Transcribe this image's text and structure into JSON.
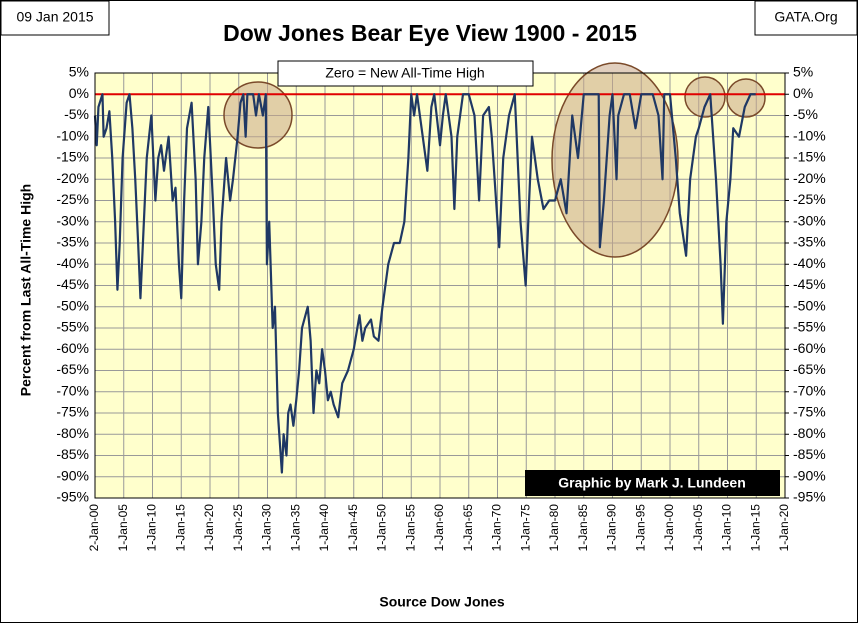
{
  "chart_data": {
    "type": "line",
    "title": "Dow Jones Bear Eye View 1900 - 2015",
    "date_label": "09 Jan 2015",
    "source_site": "GATA.Org",
    "annotation": "Zero = New All-Time High",
    "credit": "Graphic by Mark J. Lundeen",
    "y_label": "Percent  from  Last  All-Time  High",
    "x_label": "Source Dow Jones",
    "grid": true,
    "xlim": [
      1900,
      2020
    ],
    "xticks": [
      {
        "value": 1900,
        "label": "2-Jan-00"
      },
      {
        "value": 1905,
        "label": "1-Jan-05"
      },
      {
        "value": 1910,
        "label": "1-Jan-10"
      },
      {
        "value": 1915,
        "label": "1-Jan-15"
      },
      {
        "value": 1920,
        "label": "1-Jan-20"
      },
      {
        "value": 1925,
        "label": "1-Jan-25"
      },
      {
        "value": 1930,
        "label": "1-Jan-30"
      },
      {
        "value": 1935,
        "label": "1-Jan-35"
      },
      {
        "value": 1940,
        "label": "1-Jan-40"
      },
      {
        "value": 1945,
        "label": "1-Jan-45"
      },
      {
        "value": 1950,
        "label": "1-Jan-50"
      },
      {
        "value": 1955,
        "label": "1-Jan-55"
      },
      {
        "value": 1960,
        "label": "1-Jan-60"
      },
      {
        "value": 1965,
        "label": "1-Jan-65"
      },
      {
        "value": 1970,
        "label": "1-Jan-70"
      },
      {
        "value": 1975,
        "label": "1-Jan-75"
      },
      {
        "value": 1980,
        "label": "1-Jan-80"
      },
      {
        "value": 1985,
        "label": "1-Jan-85"
      },
      {
        "value": 1990,
        "label": "1-Jan-90"
      },
      {
        "value": 1995,
        "label": "1-Jan-95"
      },
      {
        "value": 2000,
        "label": "1-Jan-00"
      },
      {
        "value": 2005,
        "label": "1-Jan-05"
      },
      {
        "value": 2010,
        "label": "1-Jan-10"
      },
      {
        "value": 2015,
        "label": "1-Jan-15"
      },
      {
        "value": 2020,
        "label": "1-Jan-20"
      }
    ],
    "ylim": [
      -95,
      5
    ],
    "yticks": [
      {
        "value": 5,
        "label": "5%"
      },
      {
        "value": 0,
        "label": "0%"
      },
      {
        "value": -5,
        "label": "-5%"
      },
      {
        "value": -10,
        "label": "-10%"
      },
      {
        "value": -15,
        "label": "-15%"
      },
      {
        "value": -20,
        "label": "-20%"
      },
      {
        "value": -25,
        "label": "-25%"
      },
      {
        "value": -30,
        "label": "-30%"
      },
      {
        "value": -35,
        "label": "-35%"
      },
      {
        "value": -40,
        "label": "-40%"
      },
      {
        "value": -45,
        "label": "-45%"
      },
      {
        "value": -50,
        "label": "-50%"
      },
      {
        "value": -55,
        "label": "-55%"
      },
      {
        "value": -60,
        "label": "-60%"
      },
      {
        "value": -65,
        "label": "-65%"
      },
      {
        "value": -70,
        "label": "-70%"
      },
      {
        "value": -75,
        "label": "-75%"
      },
      {
        "value": -80,
        "label": "-80%"
      },
      {
        "value": -85,
        "label": "-85%"
      },
      {
        "value": -90,
        "label": "-90%"
      },
      {
        "value": -95,
        "label": "-95%"
      }
    ],
    "y2lim": [
      -95,
      5
    ],
    "y2ticks": [
      {
        "value": 5,
        "label": "5%"
      },
      {
        "value": 0,
        "label": "0%"
      },
      {
        "value": -5,
        "label": "-5%"
      },
      {
        "value": -10,
        "label": "-10%"
      },
      {
        "value": -15,
        "label": "-15%"
      },
      {
        "value": -20,
        "label": "-20%"
      },
      {
        "value": -25,
        "label": "-25%"
      },
      {
        "value": -30,
        "label": "-30%"
      },
      {
        "value": -35,
        "label": "-35%"
      },
      {
        "value": -40,
        "label": "-40%"
      },
      {
        "value": -45,
        "label": "-45%"
      },
      {
        "value": -50,
        "label": "-50%"
      },
      {
        "value": -55,
        "label": "-55%"
      },
      {
        "value": -60,
        "label": "-60%"
      },
      {
        "value": -65,
        "label": "-65%"
      },
      {
        "value": -70,
        "label": "-70%"
      },
      {
        "value": -75,
        "label": "-75%"
      },
      {
        "value": -80,
        "label": "-80%"
      },
      {
        "value": -85,
        "label": "-85%"
      },
      {
        "value": -90,
        "label": "-90%"
      },
      {
        "value": -95,
        "label": "-95%"
      }
    ],
    "x": [
      1900,
      1900.3,
      1900.6,
      1901.3,
      1901.5,
      1902,
      1902.5,
      1903,
      1903.5,
      1903.9,
      1904.3,
      1904.8,
      1905.5,
      1906,
      1906.5,
      1907,
      1907.5,
      1907.9,
      1908.5,
      1909,
      1909.8,
      1910.5,
      1911,
      1911.5,
      1912,
      1912.8,
      1913.5,
      1914,
      1914.6,
      1915,
      1915.5,
      1916,
      1916.8,
      1917.5,
      1917.9,
      1918.5,
      1919,
      1919.7,
      1920.5,
      1921,
      1921.6,
      1922,
      1922.8,
      1923.5,
      1924,
      1924.8,
      1925.3,
      1925.8,
      1926.2,
      1926.5,
      1927.5,
      1928,
      1928.5,
      1929.2,
      1929.7,
      1929.9,
      1930.3,
      1930.9,
      1931.3,
      1931.8,
      1932.5,
      1932.8,
      1933.3,
      1933.6,
      1934,
      1934.5,
      1935,
      1935.5,
      1936,
      1937,
      1937.5,
      1938,
      1938.5,
      1939,
      1939.5,
      1940,
      1940.5,
      1941,
      1941.5,
      1942.3,
      1943,
      1944,
      1945,
      1946,
      1946.5,
      1947,
      1948,
      1948.5,
      1949.3,
      1950,
      1951,
      1952,
      1953,
      1953.8,
      1954.5,
      1955,
      1955.5,
      1956,
      1957,
      1957.8,
      1958.5,
      1959,
      1960,
      1960.5,
      1961,
      1962,
      1962.5,
      1963,
      1964,
      1965,
      1966,
      1966.8,
      1967.5,
      1968.5,
      1969,
      1970.3,
      1971,
      1972,
      1973,
      1974,
      1974.9,
      1975.5,
      1976,
      1977,
      1978,
      1979,
      1980,
      1981,
      1982,
      1983,
      1984,
      1985,
      1986,
      1987.6,
      1987.8,
      1988.5,
      1989.5,
      1990,
      1990.7,
      1991,
      1992,
      1993,
      1994,
      1995,
      1996,
      1997,
      1998,
      1998.7,
      1999,
      2000,
      2001,
      2001.7,
      2002.8,
      2003.5,
      2004.5,
      2005,
      2006,
      2007,
      2008,
      2008.8,
      2009.2,
      2009.8,
      2010.5,
      2011,
      2012,
      2013,
      2014,
      2014.9
    ],
    "series": [
      {
        "color": "#1f3864",
        "values": [
          -5,
          -12,
          -3,
          0,
          -10,
          -8,
          -4,
          -15,
          -30,
          -46,
          -35,
          -15,
          -2,
          0,
          -8,
          -20,
          -35,
          -48,
          -30,
          -15,
          -5,
          -25,
          -15,
          -12,
          -18,
          -10,
          -25,
          -22,
          -40,
          -48,
          -25,
          -8,
          -2,
          -20,
          -40,
          -30,
          -15,
          -3,
          -25,
          -40,
          -46,
          -30,
          -15,
          -25,
          -20,
          -10,
          -2,
          0,
          -10,
          0,
          0,
          -5,
          0,
          -5,
          0,
          -40,
          -30,
          -55,
          -50,
          -75,
          -89,
          -80,
          -85,
          -75,
          -73,
          -78,
          -72,
          -65,
          -55,
          -50,
          -58,
          -75,
          -65,
          -68,
          -60,
          -65,
          -72,
          -70,
          -73,
          -76,
          -68,
          -65,
          -60,
          -52,
          -58,
          -55,
          -53,
          -57,
          -58,
          -50,
          -40,
          -35,
          -35,
          -30,
          -15,
          0,
          -5,
          0,
          -10,
          -18,
          -3,
          0,
          -12,
          -5,
          0,
          -10,
          -27,
          -10,
          0,
          0,
          -5,
          -25,
          -5,
          -3,
          -10,
          -36,
          -15,
          -5,
          0,
          -30,
          -45,
          -25,
          -10,
          -20,
          -27,
          -25,
          -25,
          -20,
          -28,
          -5,
          -15,
          0,
          0,
          0,
          -36,
          -25,
          -5,
          0,
          -20,
          -5,
          0,
          0,
          -8,
          0,
          0,
          0,
          -5,
          -20,
          0,
          0,
          -15,
          -28,
          -38,
          -20,
          -10,
          -8,
          -3,
          0,
          -20,
          -40,
          -54,
          -30,
          -20,
          -8,
          -10,
          -3,
          0,
          0
        ]
      }
    ]
  }
}
